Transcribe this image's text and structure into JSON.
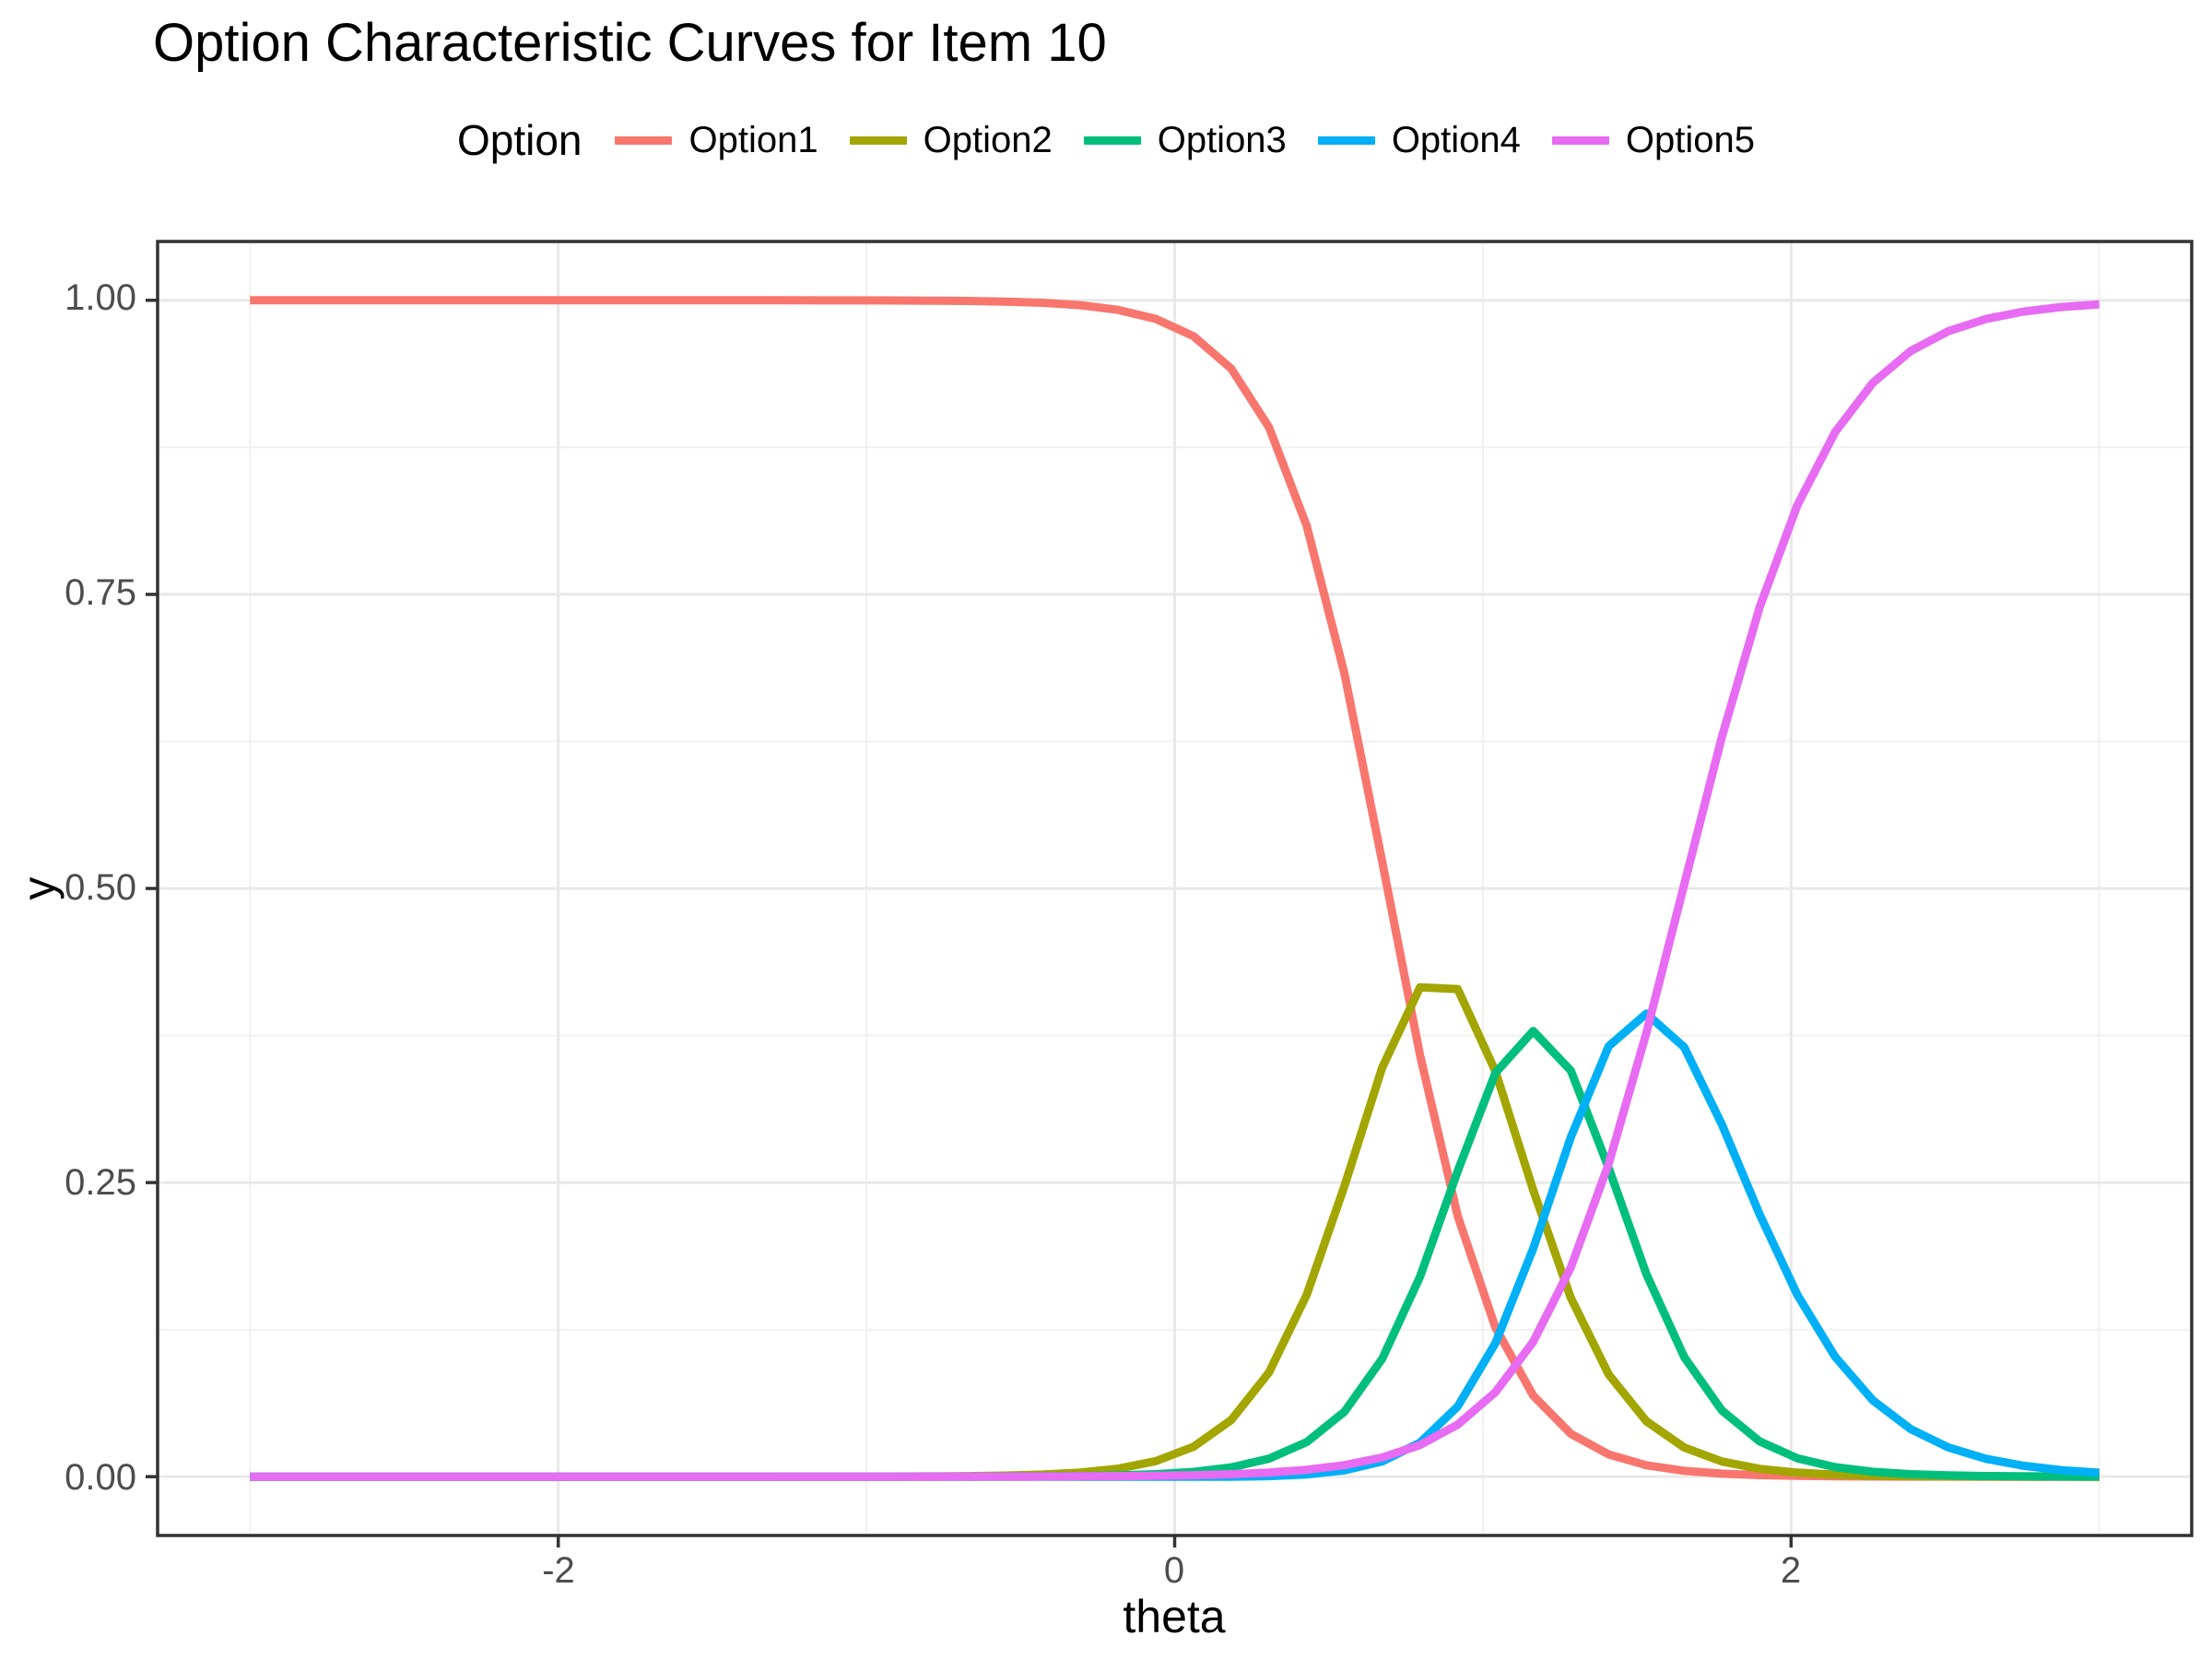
{
  "title": "Option Characteristic Curves for Item 10",
  "legend": {
    "title": "Option",
    "items": [
      {
        "label": "Option1",
        "color": "#F8766D"
      },
      {
        "label": "Option2",
        "color": "#A3A500"
      },
      {
        "label": "Option3",
        "color": "#00BF7D"
      },
      {
        "label": "Option4",
        "color": "#00B0F6"
      },
      {
        "label": "Option5",
        "color": "#E76BF3"
      }
    ]
  },
  "axes": {
    "x": {
      "title": "theta",
      "tick_labels": [
        "-2",
        "0",
        "2"
      ],
      "tick_values": [
        -2,
        0,
        2
      ]
    },
    "y": {
      "title": "y",
      "tick_labels": [
        "1.00",
        "0.75",
        "0.50",
        "0.25",
        "0.00"
      ],
      "tick_values": [
        1,
        0.75,
        0.5,
        0.25,
        0
      ]
    }
  },
  "colors": {
    "background": "#FFFFFF",
    "panel_background": "#FFFFFF",
    "grid_major": "#E8E8E8",
    "grid_minor": "#F1F1F1",
    "panel_border": "#333333",
    "tick_mark": "#333333",
    "tick_label": "#4D4D4D",
    "text": "#000000"
  },
  "chart_data": {
    "type": "line",
    "title": "Option Characteristic Curves for Item 10",
    "xlabel": "theta",
    "ylabel": "y",
    "xlim": [
      -3.3,
      3.3
    ],
    "ylim": [
      -0.05,
      1.05
    ],
    "x_major_gridlines": [
      -2,
      0,
      2
    ],
    "x_minor_gridlines": [
      -3,
      -1,
      1,
      3
    ],
    "y_major_gridlines": [
      0,
      0.25,
      0.5,
      0.75,
      1
    ],
    "y_minor_gridlines": [
      0.125,
      0.375,
      0.625,
      0.875
    ],
    "grid": true,
    "legend_position": "top",
    "line_width": 9,
    "curves_theta_range": [
      -3,
      3
    ],
    "model": {
      "type": "cumulative-logistic-differences (IRT option characteristic curves)",
      "formula": "B0=1; Bk=L(a[k]*(theta-b[k])); B5=0; P_option_k = max(0, B[k-1]-B[k]); L(z)=1/(1+exp(-z))",
      "a": [
        5.5,
        5.5,
        5.5,
        4.2
      ],
      "b": [
        0.69,
        1.02,
        1.31,
        1.65
      ],
      "theta_min": -3,
      "theta_max": 3,
      "n_points": 50
    },
    "sample_theta": [
      -3,
      -2.75,
      -2.5,
      -2.25,
      -2,
      -1.75,
      -1.5,
      -1.25,
      -1,
      -0.75,
      -0.5,
      -0.25,
      0,
      0.25,
      0.5,
      0.75,
      1,
      1.25,
      1.5,
      1.75,
      2,
      2.25,
      2.5,
      2.75,
      3
    ],
    "series": [
      {
        "name": "Option1",
        "color": "#F8766D",
        "y": [
          1,
          1,
          1,
          1,
          1,
          1,
          1,
          1,
          0.9999,
          0.9996,
          0.9986,
          0.9943,
          0.9781,
          0.9183,
          0.7398,
          0.4182,
          0.1538,
          0.0439,
          0.0115,
          0.0029,
          0.0007,
          0.0002,
          0,
          0,
          0
        ]
      },
      {
        "name": "Option2",
        "color": "#A3A500",
        "y": [
          0,
          0,
          0,
          0,
          0,
          0,
          0,
          0,
          0.0001,
          0.0003,
          0.0012,
          0.0047,
          0.0183,
          0.0674,
          0.2061,
          0.3972,
          0.3737,
          0.1763,
          0.0551,
          0.0148,
          0.0038,
          0.001,
          0.0002,
          0.0001,
          0
        ]
      },
      {
        "name": "Option3",
        "color": "#00BF7D",
        "y": [
          0,
          0,
          0,
          0,
          0,
          0,
          0,
          0,
          0,
          0,
          0.0002,
          0.0007,
          0.0029,
          0.0114,
          0.0426,
          0.1407,
          0.3187,
          0.3616,
          0.1936,
          0.064,
          0.0174,
          0.0045,
          0.0011,
          0.0003,
          0.0001
        ]
      },
      {
        "name": "Option4",
        "color": "#00B0F6",
        "y": [
          0,
          0,
          0,
          0,
          0,
          0,
          0,
          0,
          0,
          0,
          0,
          0,
          0,
          0.0001,
          0.0036,
          0.0216,
          0.0926,
          0.2612,
          0.3923,
          0.3148,
          0.1651,
          0.0687,
          0.026,
          0.0093,
          0.0033
        ]
      },
      {
        "name": "Option5",
        "color": "#E76BF3",
        "y": [
          0,
          0,
          0,
          0,
          0,
          0,
          0,
          0,
          0,
          0,
          0.0001,
          0.0003,
          0.001,
          0.0028,
          0.0079,
          0.0223,
          0.0612,
          0.157,
          0.3475,
          0.6035,
          0.813,
          0.9256,
          0.9726,
          0.9903,
          0.9966
        ]
      }
    ],
    "features": {
      "option1_half_point_theta": 0.69,
      "option2_peak": {
        "theta": 0.85,
        "y": 0.42
      },
      "option3_peak": {
        "theta": 1.17,
        "y": 0.38
      },
      "option4_peak": {
        "theta": 1.48,
        "y": 0.42
      },
      "option5_half_point_theta": 1.65,
      "option5_value_at_theta_3": 0.99
    }
  }
}
